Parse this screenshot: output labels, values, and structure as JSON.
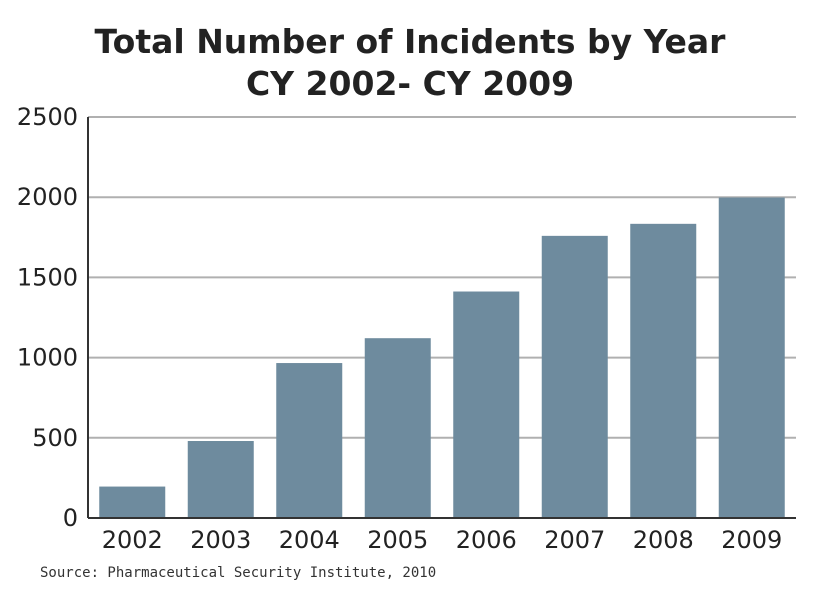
{
  "chart_data": {
    "type": "bar",
    "title": [
      "Total Number of Incidents by Year",
      "CY 2002- CY 2009"
    ],
    "categories": [
      "2002",
      "2003",
      "2004",
      "2005",
      "2006",
      "2007",
      "2008",
      "2009"
    ],
    "values": [
      196,
      480,
      966,
      1121,
      1412,
      1759,
      1834,
      1998
    ],
    "ylim": [
      0,
      2500
    ],
    "yticks": [
      0,
      500,
      1000,
      1500,
      2000,
      2500
    ],
    "grid": true,
    "xlabel": "",
    "ylabel": "",
    "bar_color": "#6e8b9e",
    "grid_color": "#b0b0b0",
    "axis_color": "#333333",
    "source": "Source: Pharmaceutical Security Institute, 2010"
  }
}
